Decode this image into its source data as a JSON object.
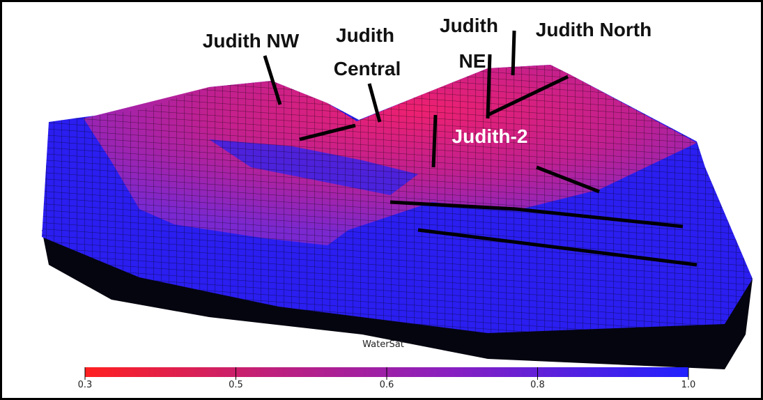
{
  "labels": [
    {
      "lines": [
        "Judith NW"
      ]
    },
    {
      "lines": [
        "Judith",
        "Central"
      ]
    },
    {
      "lines": [
        "Judith",
        "NE"
      ]
    },
    {
      "lines": [
        "Judith North"
      ]
    },
    {
      "lines": [
        "Judith-2"
      ]
    }
  ],
  "colorbar": {
    "title": "WaterSat",
    "ticks": [
      "0.3",
      "0.5",
      "0.6",
      "0.8",
      "1.0"
    ]
  }
}
